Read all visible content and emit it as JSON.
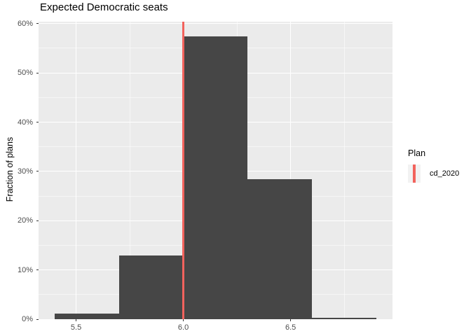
{
  "title_text": "Expected Democratic seats",
  "legend": {
    "title": "Plan",
    "items": [
      {
        "label": "cd_2020",
        "color": "#F2635D"
      }
    ]
  },
  "colors": {
    "bar": "#464646",
    "panel": "#EBEBEB",
    "grid_major": "#FFFFFF",
    "grid_minor": "rgba(255,255,255,0.55)",
    "vline": "#F2635D",
    "tick_mark": "#333333",
    "tick_text": "#4D4D4D"
  },
  "chart_data": {
    "type": "histogram",
    "title": "Expected Democratic seats",
    "xlabel": "",
    "ylabel": "Fraction of plans",
    "bin_width": 0.3,
    "bins": [
      {
        "x0": 5.4,
        "x1": 5.7,
        "pct": 1.2
      },
      {
        "x0": 5.7,
        "x1": 6.0,
        "pct": 13.0
      },
      {
        "x0": 6.0,
        "x1": 6.3,
        "pct": 57.4
      },
      {
        "x0": 6.3,
        "x1": 6.6,
        "pct": 28.4
      },
      {
        "x0": 6.6,
        "x1": 6.9,
        "pct": 0.0
      }
    ],
    "vline_x": 6.0,
    "vline_series": "cd_2020",
    "x_ticks": [
      {
        "value": 5.5,
        "label": "5.5"
      },
      {
        "value": 6.0,
        "label": "6.0"
      },
      {
        "value": 6.5,
        "label": "6.5"
      }
    ],
    "x_minor": [
      5.25,
      5.75,
      6.25,
      6.75
    ],
    "y_ticks": [
      {
        "value": 0,
        "label": "0%"
      },
      {
        "value": 10,
        "label": "10%"
      },
      {
        "value": 20,
        "label": "20%"
      },
      {
        "value": 30,
        "label": "30%"
      },
      {
        "value": 40,
        "label": "40%"
      },
      {
        "value": 50,
        "label": "50%"
      },
      {
        "value": 60,
        "label": "60%"
      }
    ],
    "y_minor": [
      5,
      15,
      25,
      35,
      45,
      55
    ],
    "xlim": [
      5.325,
      6.975
    ],
    "ylim": [
      0,
      60.4
    ],
    "grid": true,
    "legend_position": "right"
  }
}
